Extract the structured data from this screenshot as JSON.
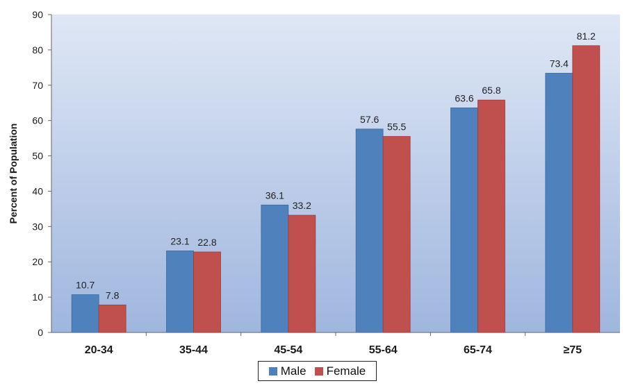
{
  "chart_data": {
    "type": "bar",
    "categories": [
      "20-34",
      "35-44",
      "45-54",
      "55-64",
      "65-74",
      "≥75"
    ],
    "series": [
      {
        "name": "Male",
        "values": [
          10.7,
          23.1,
          36.1,
          57.6,
          63.6,
          73.4
        ],
        "labels": [
          "10.7",
          "23.1",
          "36.1",
          "57.6",
          "63.6",
          "73.4"
        ],
        "color": "#4f81bd"
      },
      {
        "name": "Female",
        "values": [
          7.8,
          22.8,
          33.2,
          55.5,
          65.8,
          81.2
        ],
        "labels": [
          "7.8",
          "22.8",
          "33.2",
          "55.5",
          "65.8",
          "81.2"
        ],
        "color": "#c0504d"
      }
    ],
    "ylabel": "Percent of Population",
    "xlabel": "",
    "ylim": [
      0,
      90
    ],
    "yticks": [
      "0",
      "10",
      "20",
      "30",
      "40",
      "50",
      "60",
      "70",
      "80",
      "90"
    ],
    "legend_position": "bottom-center",
    "grid": false,
    "plot_background": "gradient from #dfe7f5 (top) to #9fb6de (bottom)"
  }
}
